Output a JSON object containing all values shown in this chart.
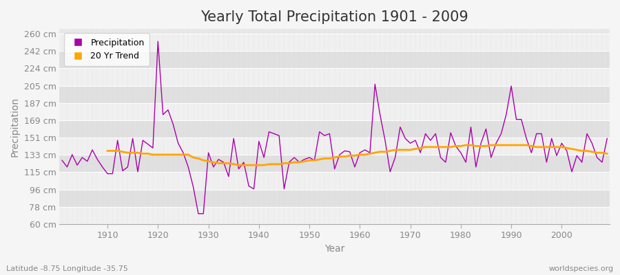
{
  "title": "Yearly Total Precipitation 1901 - 2009",
  "xlabel": "Year",
  "ylabel": "Precipitation",
  "subtitle_left": "Latitude -8.75 Longitude -35.75",
  "subtitle_right": "worldspecies.org",
  "years": [
    1901,
    1902,
    1903,
    1904,
    1905,
    1906,
    1907,
    1908,
    1909,
    1910,
    1911,
    1912,
    1913,
    1914,
    1915,
    1916,
    1917,
    1918,
    1919,
    1920,
    1921,
    1922,
    1923,
    1924,
    1925,
    1926,
    1927,
    1928,
    1929,
    1930,
    1931,
    1932,
    1933,
    1934,
    1935,
    1936,
    1937,
    1938,
    1939,
    1940,
    1941,
    1942,
    1943,
    1944,
    1945,
    1946,
    1947,
    1948,
    1949,
    1950,
    1951,
    1952,
    1953,
    1954,
    1955,
    1956,
    1957,
    1958,
    1959,
    1960,
    1961,
    1962,
    1963,
    1964,
    1965,
    1966,
    1967,
    1968,
    1969,
    1970,
    1971,
    1972,
    1973,
    1974,
    1975,
    1976,
    1977,
    1978,
    1979,
    1980,
    1981,
    1982,
    1983,
    1984,
    1985,
    1986,
    1987,
    1988,
    1989,
    1990,
    1991,
    1992,
    1993,
    1994,
    1995,
    1996,
    1997,
    1998,
    1999,
    2000,
    2001,
    2002,
    2003,
    2004,
    2005,
    2006,
    2007,
    2008,
    2009
  ],
  "precipitation": [
    127,
    120,
    133,
    122,
    130,
    126,
    138,
    128,
    120,
    113,
    113,
    148,
    116,
    120,
    150,
    115,
    148,
    144,
    140,
    252,
    175,
    180,
    165,
    145,
    135,
    120,
    99,
    71,
    71,
    135,
    120,
    128,
    125,
    110,
    150,
    118,
    125,
    100,
    97,
    147,
    130,
    157,
    155,
    153,
    97,
    125,
    130,
    125,
    128,
    130,
    127,
    157,
    153,
    155,
    118,
    133,
    137,
    136,
    120,
    135,
    138,
    135,
    207,
    175,
    148,
    115,
    130,
    162,
    150,
    145,
    148,
    135,
    155,
    148,
    155,
    130,
    125,
    156,
    142,
    135,
    125,
    162,
    120,
    145,
    160,
    130,
    145,
    155,
    175,
    205,
    170,
    170,
    150,
    135,
    155,
    155,
    125,
    150,
    132,
    145,
    137,
    115,
    132,
    125,
    155,
    145,
    130,
    125,
    150
  ],
  "trend": [
    null,
    null,
    null,
    null,
    null,
    null,
    null,
    null,
    null,
    137,
    137,
    137,
    136,
    135,
    135,
    135,
    134,
    134,
    133,
    133,
    133,
    133,
    133,
    133,
    133,
    133,
    130,
    129,
    127,
    126,
    125,
    124,
    124,
    124,
    123,
    122,
    122,
    122,
    122,
    122,
    122,
    123,
    123,
    123,
    124,
    124,
    125,
    125,
    126,
    127,
    127,
    128,
    129,
    129,
    130,
    131,
    131,
    132,
    132,
    133,
    133,
    134,
    135,
    136,
    136,
    137,
    138,
    138,
    138,
    138,
    139,
    140,
    141,
    141,
    141,
    141,
    141,
    141,
    142,
    142,
    143,
    143,
    142,
    142,
    142,
    143,
    143,
    143,
    143,
    143,
    143,
    143,
    143,
    142,
    141,
    141,
    141,
    141,
    141,
    141,
    140,
    139,
    138,
    137,
    137,
    136,
    135,
    135,
    134
  ],
  "line_color": "#aa00aa",
  "trend_color": "#FFA500",
  "fig_bg_color": "#f5f5f5",
  "plot_bg_color": "#e8e8e8",
  "band_color_light": "#f0f0f0",
  "band_color_dark": "#e0e0e0",
  "grid_color": "#ffffff",
  "minor_grid_color": "#d8d8d8",
  "ylim": [
    60,
    265
  ],
  "yticks": [
    60,
    78,
    96,
    115,
    133,
    151,
    169,
    187,
    205,
    224,
    242,
    260
  ],
  "ytick_labels": [
    "60 cm",
    "78 cm",
    "96 cm",
    "115 cm",
    "133 cm",
    "151 cm",
    "169 cm",
    "187 cm",
    "205 cm",
    "224 cm",
    "242 cm",
    "260 cm"
  ],
  "title_fontsize": 15,
  "axis_label_fontsize": 10,
  "tick_fontsize": 9,
  "legend_fontsize": 9
}
